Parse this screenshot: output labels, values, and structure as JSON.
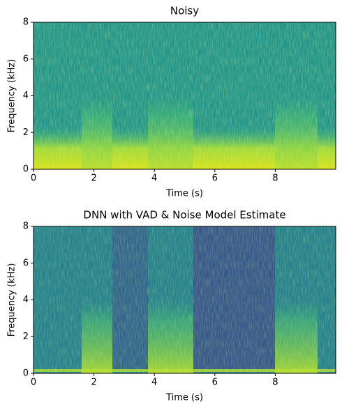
{
  "chart_data": [
    {
      "type": "spectrogram",
      "title": "Noisy",
      "xlabel": "Time (s)",
      "ylabel": "Frequency (kHz)",
      "xlim": [
        0,
        10
      ],
      "ylim": [
        0,
        8
      ],
      "xticks": [
        0,
        2,
        4,
        6,
        8
      ],
      "yticks": [
        0,
        2,
        4,
        6,
        8
      ],
      "colormap": "viridis"
    },
    {
      "type": "spectrogram",
      "title": "DNN with VAD & Noise Model Estimate",
      "xlabel": "Time (s)",
      "ylabel": "Frequency (kHz)",
      "xlim": [
        0,
        10
      ],
      "ylim": [
        0,
        8
      ],
      "xticks": [
        0,
        2,
        4,
        6,
        8
      ],
      "yticks": [
        0,
        2,
        4,
        6,
        8
      ],
      "colormap": "viridis"
    }
  ]
}
